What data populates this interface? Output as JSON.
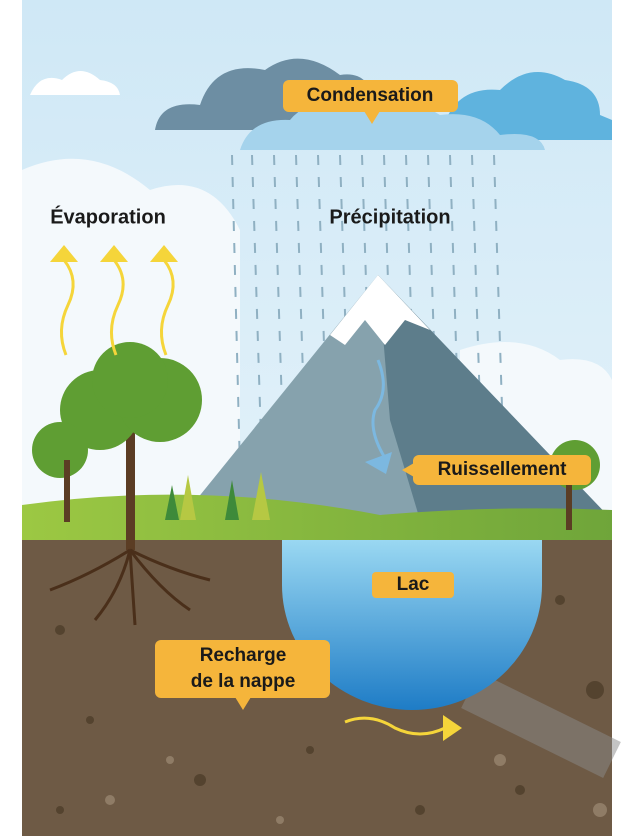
{
  "labels": {
    "condensation": "Condensation",
    "evaporation": "Évaporation",
    "precipitation": "Précipitation",
    "runoff": "Ruissellement",
    "lake": "Lac",
    "recharge": [
      "Recharge",
      "de la nappe"
    ]
  }
}
